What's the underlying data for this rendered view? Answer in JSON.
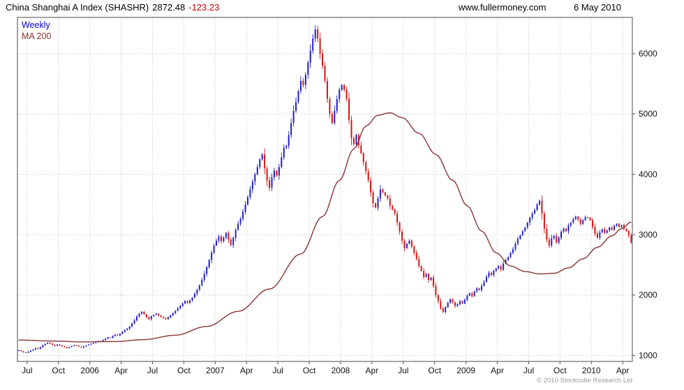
{
  "header": {
    "title": "China Shanghai A Index (SHASHR)",
    "last_price": "2872.48",
    "change": "-123.23",
    "website": "www.fullermoney.com",
    "date": "6 May 2010"
  },
  "legend": {
    "weekly": "Weekly",
    "ma200": "MA 200"
  },
  "footer": {
    "copyright": "© 2010 Stockcube Research Ltd"
  },
  "chart_data": {
    "type": "candlestick",
    "title": "China Shanghai A Index (SHASHR)",
    "timeframe": "Weekly",
    "xlabel": "",
    "ylabel": "",
    "grid": "dotted",
    "legend_position": "top-left",
    "ylim": [
      900,
      6600
    ],
    "y_ticks": [
      1000,
      2000,
      3000,
      4000,
      5000,
      6000
    ],
    "x_tick_labels": [
      "Jul",
      "Oct",
      "2006",
      "Apr",
      "Jul",
      "Oct",
      "2007",
      "Apr",
      "Jul",
      "Oct",
      "2008",
      "Apr",
      "Jul",
      "Oct",
      "2009",
      "Apr",
      "Jul",
      "Oct",
      "2010",
      "Apr"
    ],
    "x_tick_weeks": [
      3.5,
      16.5,
      29.5,
      42.5,
      55.5,
      68.5,
      81.5,
      94.5,
      107.5,
      120.5,
      133.5,
      146.5,
      159.5,
      172.5,
      185.5,
      198.5,
      211.5,
      224.5,
      237.5,
      250.5
    ],
    "series": [
      {
        "name": "Weekly",
        "type": "candlestick",
        "up_color": "#1f1fc8",
        "down_color": "#d41414",
        "closes": [
          1085,
          1068,
          1052,
          1045,
          1062,
          1080,
          1098,
          1122,
          1108,
          1138,
          1168,
          1190,
          1210,
          1196,
          1176,
          1160,
          1180,
          1166,
          1150,
          1136,
          1120,
          1140,
          1156,
          1170,
          1160,
          1146,
          1130,
          1150,
          1166,
          1180,
          1192,
          1206,
          1222,
          1240,
          1230,
          1256,
          1276,
          1300,
          1290,
          1320,
          1344,
          1330,
          1360,
          1392,
          1420,
          1442,
          1480,
          1530,
          1580,
          1642,
          1690,
          1722,
          1680,
          1632,
          1600,
          1650,
          1670,
          1692,
          1662,
          1640,
          1620,
          1600,
          1630,
          1666,
          1700,
          1740,
          1780,
          1820,
          1862,
          1900,
          1870,
          1912,
          1960,
          2022,
          2090,
          2162,
          2250,
          2352,
          2462,
          2580,
          2700,
          2820,
          2900,
          2970,
          2890,
          2952,
          3030,
          2920,
          2830,
          2950,
          3080,
          3180,
          3262,
          3380,
          3500,
          3622,
          3750,
          3880,
          4000,
          4122,
          4250,
          4330,
          4100,
          3900,
          3780,
          3952,
          4060,
          3980,
          4120,
          4280,
          4440,
          4470,
          4650,
          4850,
          5050,
          5200,
          5380,
          5550,
          5480,
          5650,
          5850,
          6050,
          6250,
          6400,
          6250,
          6000,
          5800,
          5550,
          5250,
          5000,
          4850,
          5050,
          5250,
          5400,
          5480,
          5400,
          5250,
          4900,
          4600,
          4500,
          4650,
          4480,
          4350,
          4200,
          4050,
          3900,
          3700,
          3520,
          3450,
          3600,
          3750,
          3700,
          3650,
          3600,
          3480,
          3420,
          3350,
          3200,
          3050,
          2900,
          2780,
          2850,
          2900,
          2800,
          2700,
          2600,
          2480,
          2400,
          2300,
          2350,
          2250,
          2290,
          2150,
          2000,
          1900,
          1780,
          1720,
          1800,
          1870,
          1930,
          1880,
          1820,
          1850,
          1900,
          1860,
          1920,
          1990,
          2030,
          1980,
          2060,
          2110,
          2080,
          2150,
          2220,
          2300,
          2370,
          2330,
          2400,
          2440,
          2480,
          2420,
          2520,
          2580,
          2630,
          2700,
          2760,
          2850,
          2930,
          2990,
          3060,
          3120,
          3200,
          3280,
          3350,
          3410,
          3500,
          3560,
          3350,
          3100,
          2920,
          2820,
          2940,
          2980,
          2870,
          2950,
          3050,
          3100,
          3060,
          3150,
          3200,
          3260,
          3300,
          3250,
          3180,
          3240,
          3290,
          3280,
          3240,
          3130,
          3020,
          2950,
          3040,
          3090,
          3030,
          3070,
          3120,
          3080,
          3150,
          3180,
          3130,
          3160,
          3100,
          3060,
          2990,
          2872
        ]
      },
      {
        "name": "MA 200",
        "type": "line",
        "color": "#8b3333",
        "keypoints": [
          [
            0,
            1255
          ],
          [
            14,
            1238
          ],
          [
            27,
            1224
          ],
          [
            40,
            1230
          ],
          [
            52,
            1262
          ],
          [
            65,
            1335
          ],
          [
            78,
            1480
          ],
          [
            91,
            1730
          ],
          [
            104,
            2100
          ],
          [
            117,
            2680
          ],
          [
            126,
            3300
          ],
          [
            133,
            3900
          ],
          [
            139,
            4420
          ],
          [
            144,
            4800
          ],
          [
            149,
            4980
          ],
          [
            154,
            5020
          ],
          [
            159,
            4940
          ],
          [
            166,
            4680
          ],
          [
            173,
            4330
          ],
          [
            180,
            3900
          ],
          [
            186,
            3480
          ],
          [
            192,
            3060
          ],
          [
            198,
            2700
          ],
          [
            204,
            2480
          ],
          [
            210,
            2390
          ],
          [
            216,
            2350
          ],
          [
            222,
            2360
          ],
          [
            228,
            2450
          ],
          [
            234,
            2600
          ],
          [
            240,
            2790
          ],
          [
            246,
            2980
          ],
          [
            250,
            3100
          ],
          [
            254,
            3210
          ]
        ]
      }
    ]
  }
}
